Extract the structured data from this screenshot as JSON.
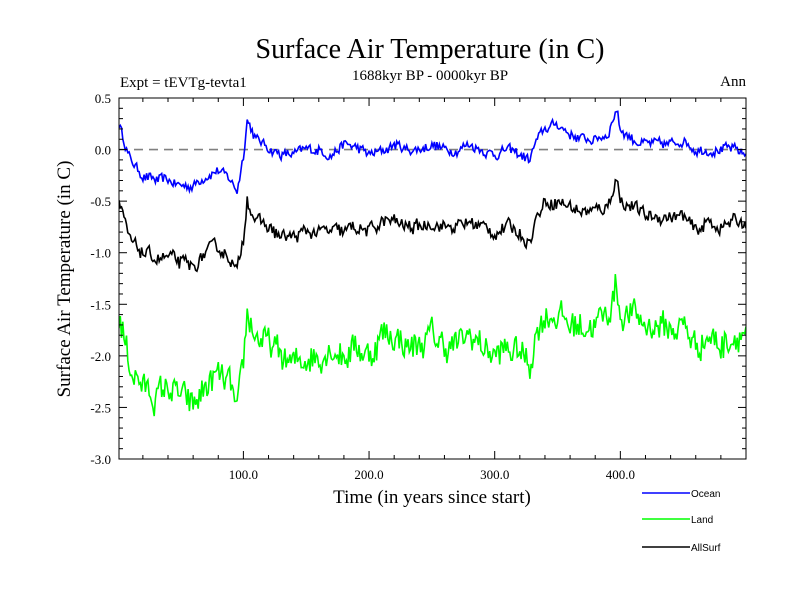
{
  "chart_data": {
    "type": "line",
    "title": "Surface Air Temperature (in C)",
    "subtitle": "1688kyr BP - 0000kyr BP",
    "experiment_label": "Expt = tEVTg-tevta1",
    "season_label": "Ann",
    "xlabel": "Time (in years since start)",
    "ylabel": "Surface Air Temperature (in C)",
    "xlim": [
      1,
      500
    ],
    "ylim": [
      -3.0,
      0.5
    ],
    "xticks": [
      100,
      200,
      300,
      400
    ],
    "xtick_labels": [
      "100.0",
      "200.0",
      "300.0",
      "400.0"
    ],
    "yticks": [
      0.5,
      0.0,
      -0.5,
      -1.0,
      -1.5,
      -2.0,
      -2.5,
      -3.0
    ],
    "ytick_labels": [
      "0.5",
      "0.0",
      "-0.5",
      "-1.0",
      "-1.5",
      "-2.0",
      "-2.5",
      "-3.0"
    ],
    "reference_line": 0.0,
    "legend_position": "below-right",
    "series": [
      {
        "name": "Ocean",
        "color": "#0000ff",
        "x": [
          1,
          10,
          20,
          30,
          40,
          50,
          60,
          70,
          80,
          90,
          95,
          100,
          103,
          110,
          120,
          130,
          140,
          150,
          160,
          170,
          180,
          190,
          200,
          210,
          220,
          230,
          240,
          250,
          260,
          270,
          280,
          290,
          300,
          310,
          320,
          328,
          332,
          340,
          350,
          360,
          370,
          380,
          390,
          397,
          400,
          410,
          420,
          430,
          440,
          450,
          460,
          470,
          480,
          490,
          500
        ],
        "values": [
          0.25,
          -0.1,
          -0.25,
          -0.3,
          -0.3,
          -0.35,
          -0.35,
          -0.25,
          -0.2,
          -0.3,
          -0.4,
          -0.05,
          0.3,
          0.1,
          0.02,
          -0.05,
          -0.05,
          0.0,
          0.0,
          -0.05,
          0.05,
          0.02,
          -0.05,
          -0.02,
          0.05,
          0.0,
          0.0,
          0.05,
          0.0,
          0.0,
          0.05,
          0.0,
          -0.05,
          0.0,
          -0.05,
          -0.1,
          0.05,
          0.2,
          0.25,
          0.15,
          0.1,
          0.1,
          0.15,
          0.4,
          0.2,
          0.1,
          0.05,
          0.05,
          0.05,
          0.1,
          0.0,
          0.0,
          0.0,
          0.0,
          -0.05
        ]
      },
      {
        "name": "Land",
        "color": "#00ff00",
        "x": [
          1,
          10,
          20,
          30,
          40,
          50,
          60,
          70,
          80,
          90,
          95,
          100,
          103,
          110,
          120,
          130,
          140,
          150,
          160,
          170,
          180,
          190,
          200,
          210,
          220,
          230,
          240,
          250,
          260,
          270,
          280,
          290,
          300,
          310,
          320,
          328,
          332,
          340,
          350,
          360,
          370,
          380,
          390,
          397,
          400,
          410,
          420,
          430,
          440,
          450,
          460,
          470,
          480,
          490,
          500
        ],
        "values": [
          -1.6,
          -2.1,
          -2.3,
          -2.4,
          -2.3,
          -2.4,
          -2.5,
          -2.3,
          -2.2,
          -2.3,
          -2.6,
          -2.1,
          -1.6,
          -1.8,
          -1.9,
          -2.0,
          -2.1,
          -2.0,
          -2.0,
          -1.9,
          -2.0,
          -1.9,
          -2.0,
          -1.8,
          -1.8,
          -1.9,
          -1.9,
          -1.8,
          -1.9,
          -1.9,
          -1.8,
          -1.9,
          -2.0,
          -1.95,
          -1.95,
          -2.1,
          -1.8,
          -1.6,
          -1.6,
          -1.7,
          -1.7,
          -1.7,
          -1.6,
          -1.3,
          -1.6,
          -1.6,
          -1.7,
          -1.7,
          -1.75,
          -1.7,
          -1.9,
          -1.8,
          -1.9,
          -1.8,
          -1.75
        ]
      },
      {
        "name": "AllSurf",
        "color": "#000000",
        "x": [
          1,
          10,
          20,
          30,
          40,
          50,
          60,
          70,
          80,
          90,
          95,
          100,
          103,
          110,
          120,
          130,
          140,
          150,
          160,
          170,
          180,
          190,
          200,
          210,
          220,
          230,
          240,
          250,
          260,
          270,
          280,
          290,
          300,
          310,
          320,
          328,
          332,
          340,
          350,
          360,
          370,
          380,
          390,
          397,
          400,
          410,
          420,
          430,
          440,
          450,
          460,
          470,
          480,
          490,
          500
        ],
        "values": [
          -0.55,
          -0.9,
          -1.0,
          -1.05,
          -1.05,
          -1.1,
          -1.15,
          -1.0,
          -0.95,
          -1.05,
          -1.2,
          -0.85,
          -0.45,
          -0.7,
          -0.75,
          -0.85,
          -0.85,
          -0.8,
          -0.8,
          -0.8,
          -0.8,
          -0.75,
          -0.8,
          -0.7,
          -0.7,
          -0.75,
          -0.75,
          -0.7,
          -0.75,
          -0.75,
          -0.7,
          -0.75,
          -0.8,
          -0.75,
          -0.8,
          -0.9,
          -0.7,
          -0.5,
          -0.5,
          -0.55,
          -0.6,
          -0.6,
          -0.55,
          -0.25,
          -0.5,
          -0.55,
          -0.65,
          -0.65,
          -0.65,
          -0.65,
          -0.8,
          -0.7,
          -0.75,
          -0.7,
          -0.7
        ]
      }
    ]
  }
}
